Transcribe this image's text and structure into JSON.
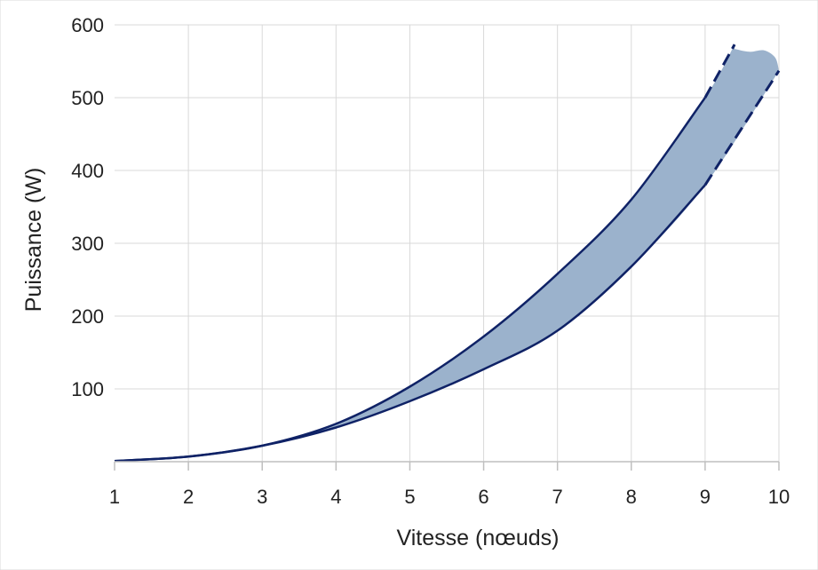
{
  "chart_data": {
    "type": "area",
    "title": "",
    "xlabel": "Vitesse (nœuds)",
    "ylabel": "Puissance (W)",
    "xlim": [
      1,
      10
    ],
    "ylim": [
      0,
      600
    ],
    "x_ticks": [
      1,
      2,
      3,
      4,
      5,
      6,
      7,
      8,
      9,
      10
    ],
    "y_ticks": [
      100,
      200,
      300,
      400,
      500,
      600
    ],
    "grid": true,
    "legend": "none",
    "colors": {
      "fill": "#9bb2cc",
      "line": "#0f2266",
      "grid": "#d9d9d9",
      "axis": "#bfbfbf"
    },
    "series": [
      {
        "role": "upper-bound",
        "x": [
          1,
          2,
          3,
          4,
          5,
          6,
          7,
          8,
          9,
          9.4
        ],
        "y": [
          1,
          7,
          22,
          52,
          103,
          172,
          258,
          360,
          500,
          573
        ]
      },
      {
        "role": "lower-bound",
        "x": [
          1,
          2,
          3,
          4,
          5,
          6,
          7,
          8,
          9,
          10
        ],
        "y": [
          1,
          7,
          22,
          47,
          83,
          127,
          180,
          268,
          380,
          537
        ]
      }
    ],
    "dashed_from_x": 9,
    "band_top_right": {
      "x": [
        9.4,
        9.6,
        9.8,
        9.95,
        10
      ],
      "y": [
        567,
        563,
        565,
        555,
        537
      ]
    }
  }
}
